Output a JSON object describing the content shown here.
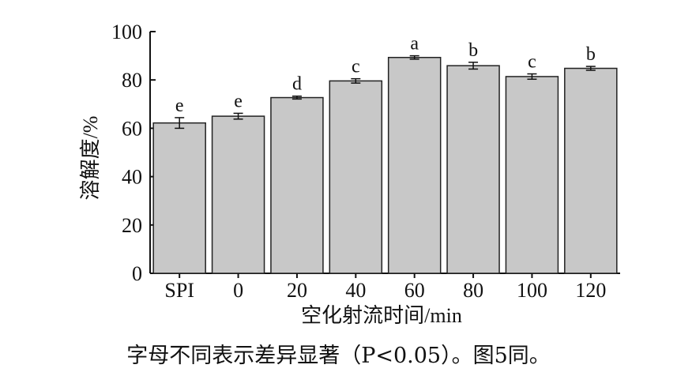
{
  "chart_data": {
    "type": "bar",
    "categories": [
      "SPI",
      "0",
      "20",
      "40",
      "60",
      "80",
      "100",
      "120"
    ],
    "values": [
      62.2,
      65.0,
      72.7,
      79.6,
      89.3,
      85.9,
      81.4,
      84.8
    ],
    "errors": [
      2.2,
      1.2,
      0.6,
      0.9,
      0.7,
      1.4,
      1.1,
      0.8
    ],
    "significance": [
      "e",
      "e",
      "d",
      "c",
      "a",
      "b",
      "c",
      "b"
    ],
    "ylabel": "溶解度/%",
    "xlabel": "空化射流时间/min",
    "ylim": [
      0,
      100
    ],
    "yticks": [
      0,
      20,
      40,
      60,
      80,
      100
    ],
    "bar_color": "#c8c8c8",
    "bar_edge_color": "#222222"
  },
  "caption": "字母不同表示差异显著（P<0.05）。图5同。"
}
